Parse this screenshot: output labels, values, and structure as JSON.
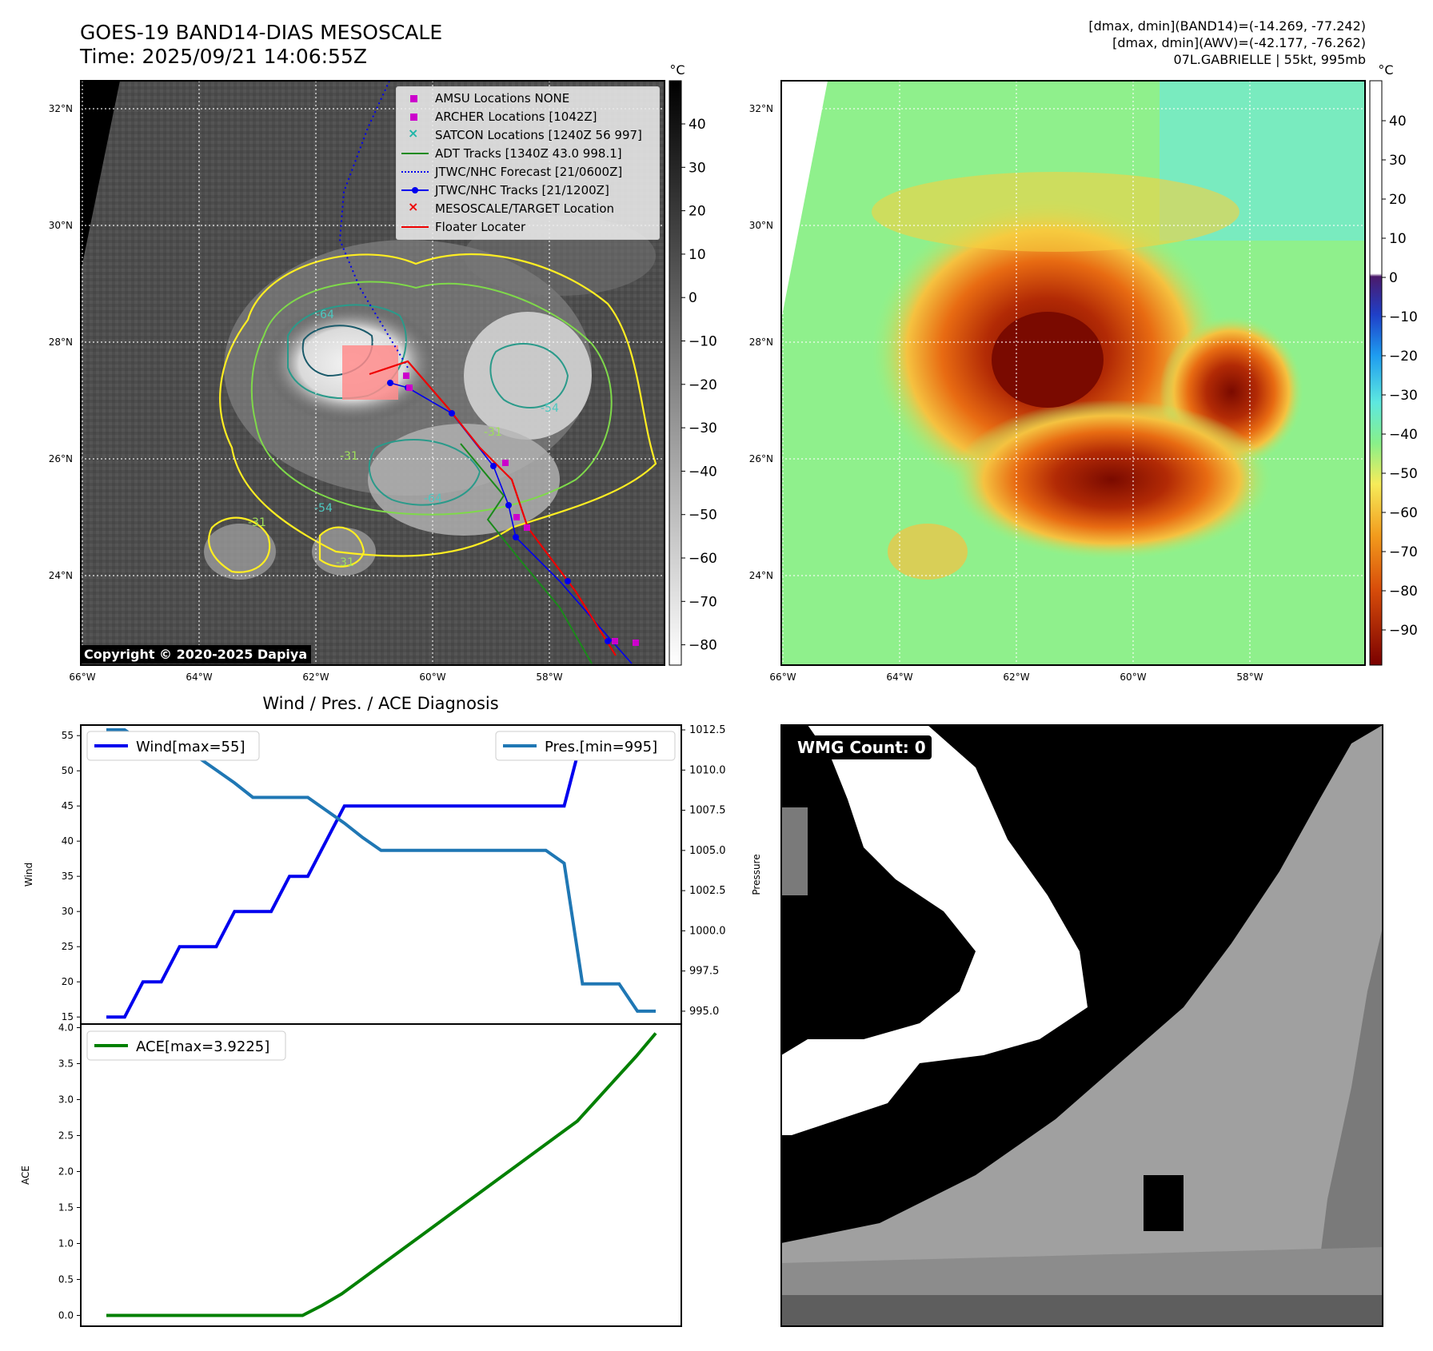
{
  "header": {
    "title_line1": "GOES-19 BAND14-DIAS MESOSCALE",
    "title_line2": "Time: 2025/09/21 14:06:55Z",
    "info_line1": "[dmax, dmin](BAND14)=(-14.269, -77.242)",
    "info_line2": "[dmax, dmin](AWV)=(-42.177, -76.262)",
    "info_line3": "07L.GABRIELLE | 55kt, 995mb"
  },
  "copyright": "Copyright © 2020-2025 Dapiya",
  "map": {
    "lat_labels": [
      "32°N",
      "30°N",
      "28°N",
      "26°N",
      "24°N"
    ],
    "lon_labels": [
      "66°W",
      "64°W",
      "62°W",
      "60°W",
      "58°W"
    ],
    "contour_labels": [
      "-64",
      "-54",
      "-31",
      "-31",
      "-54",
      "-31",
      "-31",
      "-64"
    ],
    "legend": [
      {
        "label": "AMSU Locations NONE",
        "color": "#cc00cc",
        "symbol": "square"
      },
      {
        "label": "ARCHER Locations [1042Z]",
        "color": "#cc00cc",
        "symbol": "square"
      },
      {
        "label": "SATCON Locations [1240Z 56 997]",
        "color": "#1fb5a8",
        "symbol": "x"
      },
      {
        "label": "ADT Tracks [1340Z 43.0 998.1]",
        "color": "#1a8a1a",
        "symbol": "line"
      },
      {
        "label": "JTWC/NHC Forecast [21/0600Z]",
        "color": "#0000ee",
        "symbol": "dotted"
      },
      {
        "label": "JTWC/NHC Tracks [21/1200Z]",
        "color": "#0000ee",
        "symbol": "line-dot"
      },
      {
        "label": "MESOSCALE/TARGET Location",
        "color": "#ee0000",
        "symbol": "x"
      },
      {
        "label": "Floater Locater",
        "color": "#ee0000",
        "symbol": "line"
      }
    ]
  },
  "colorbar_gray": {
    "unit": "°C",
    "ticks": [
      "40",
      "30",
      "20",
      "10",
      "0",
      "−10",
      "−20",
      "−30",
      "−40",
      "−50",
      "−60",
      "−70",
      "−80"
    ]
  },
  "colorbar_color": {
    "unit": "°C",
    "ticks": [
      "40",
      "30",
      "20",
      "10",
      "0",
      "−10",
      "−20",
      "−30",
      "−40",
      "−50",
      "−60",
      "−70",
      "−80",
      "−90"
    ]
  },
  "wmg": {
    "label": "WMG Count: 0"
  },
  "chart_data": [
    {
      "type": "line",
      "title": "Wind / Pres. / ACE Diagnosis",
      "ylabel": "Wind",
      "ylabel_right": "Pressure",
      "ylim": [
        14,
        56.5
      ],
      "ylim_right": [
        994.2,
        1012.8
      ],
      "y_ticks": [
        15,
        20,
        25,
        30,
        35,
        40,
        45,
        50,
        55
      ],
      "y_ticks_right": [
        995.0,
        997.5,
        1000.0,
        1002.5,
        1005.0,
        1007.5,
        1010.0,
        1012.5
      ],
      "series": [
        {
          "name": "Wind[max=55]",
          "color": "#0000ee",
          "axis": "left",
          "values": [
            15,
            15,
            20,
            20,
            25,
            25,
            25,
            30,
            30,
            30,
            35,
            35,
            40,
            45,
            45,
            45,
            45,
            45,
            45,
            45,
            45,
            45,
            45,
            45,
            45,
            45,
            55,
            55,
            55,
            55,
            55
          ]
        },
        {
          "name": "Pres.[min=995]",
          "color": "#1f77b4",
          "axis": "right",
          "values": [
            1012.5,
            1012.5,
            1011.7,
            1011.7,
            1010.8,
            1010.8,
            1010.0,
            1009.2,
            1008.3,
            1008.3,
            1008.3,
            1008.3,
            1007.5,
            1006.7,
            1005.8,
            1005.0,
            1005.0,
            1005.0,
            1005.0,
            1005.0,
            1005.0,
            1005.0,
            1005.0,
            1005.0,
            1005.0,
            1004.2,
            996.7,
            996.7,
            996.7,
            995.0,
            995.0
          ]
        }
      ]
    },
    {
      "type": "line",
      "ylabel": "ACE",
      "ylim": [
        -0.15,
        4.05
      ],
      "y_ticks": [
        0.0,
        0.5,
        1.0,
        1.5,
        2.0,
        2.5,
        3.0,
        3.5,
        4.0
      ],
      "series": [
        {
          "name": "ACE[max=3.9225]",
          "color": "#008000",
          "values": [
            0,
            0,
            0,
            0,
            0,
            0,
            0,
            0,
            0,
            0,
            0,
            0.14,
            0.3,
            0.5,
            0.7,
            0.9,
            1.1,
            1.3,
            1.5,
            1.7,
            1.9,
            2.1,
            2.3,
            2.5,
            2.7,
            3.0,
            3.3,
            3.6,
            3.9225
          ]
        }
      ]
    }
  ]
}
